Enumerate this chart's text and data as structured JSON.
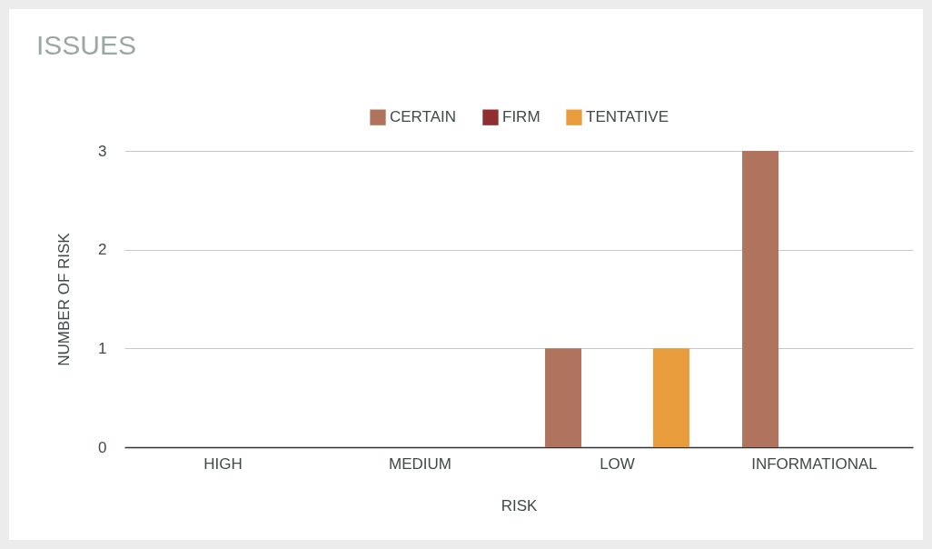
{
  "chart_data": {
    "type": "bar",
    "title": "ISSUES",
    "xlabel": "RISK",
    "ylabel": "NUMBER OF RISK",
    "categories": [
      "HIGH",
      "MEDIUM",
      "LOW",
      "INFORMATIONAL"
    ],
    "series": [
      {
        "name": "CERTAIN",
        "color": "#b0735d",
        "values": [
          0,
          0,
          1,
          3
        ]
      },
      {
        "name": "FIRM",
        "color": "#8f2f2f",
        "values": [
          0,
          0,
          0,
          0
        ]
      },
      {
        "name": "TENTATIVE",
        "color": "#e89c3b",
        "values": [
          0,
          0,
          1,
          0
        ]
      }
    ],
    "ylim": [
      0,
      3
    ],
    "yticks": [
      0,
      1,
      2,
      3
    ],
    "grid": "y",
    "legend": "top"
  }
}
